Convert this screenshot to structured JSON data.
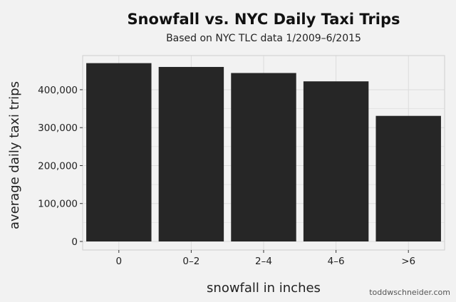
{
  "chart_data": {
    "type": "bar",
    "title": "Snowfall vs. NYC Daily Taxi Trips",
    "subtitle": "Based on NYC TLC data 1/2009–6/2015",
    "xlabel": "snowfall in inches",
    "ylabel": "average daily taxi trips",
    "categories": [
      "0",
      "0–2",
      "2–4",
      "4–6",
      ">6"
    ],
    "values": [
      470000,
      460000,
      444000,
      422000,
      331000
    ],
    "yticks": [
      0,
      100000,
      200000,
      300000,
      400000
    ],
    "ytick_labels": [
      "0",
      "100,000",
      "200,000",
      "300,000",
      "400,000"
    ],
    "ylim": [
      0,
      490000
    ],
    "grid": true,
    "bar_color": "#262626",
    "panel_color": "#f2f2f2",
    "grid_color": "#dcdcdc"
  },
  "credit": "toddwschneider.com"
}
